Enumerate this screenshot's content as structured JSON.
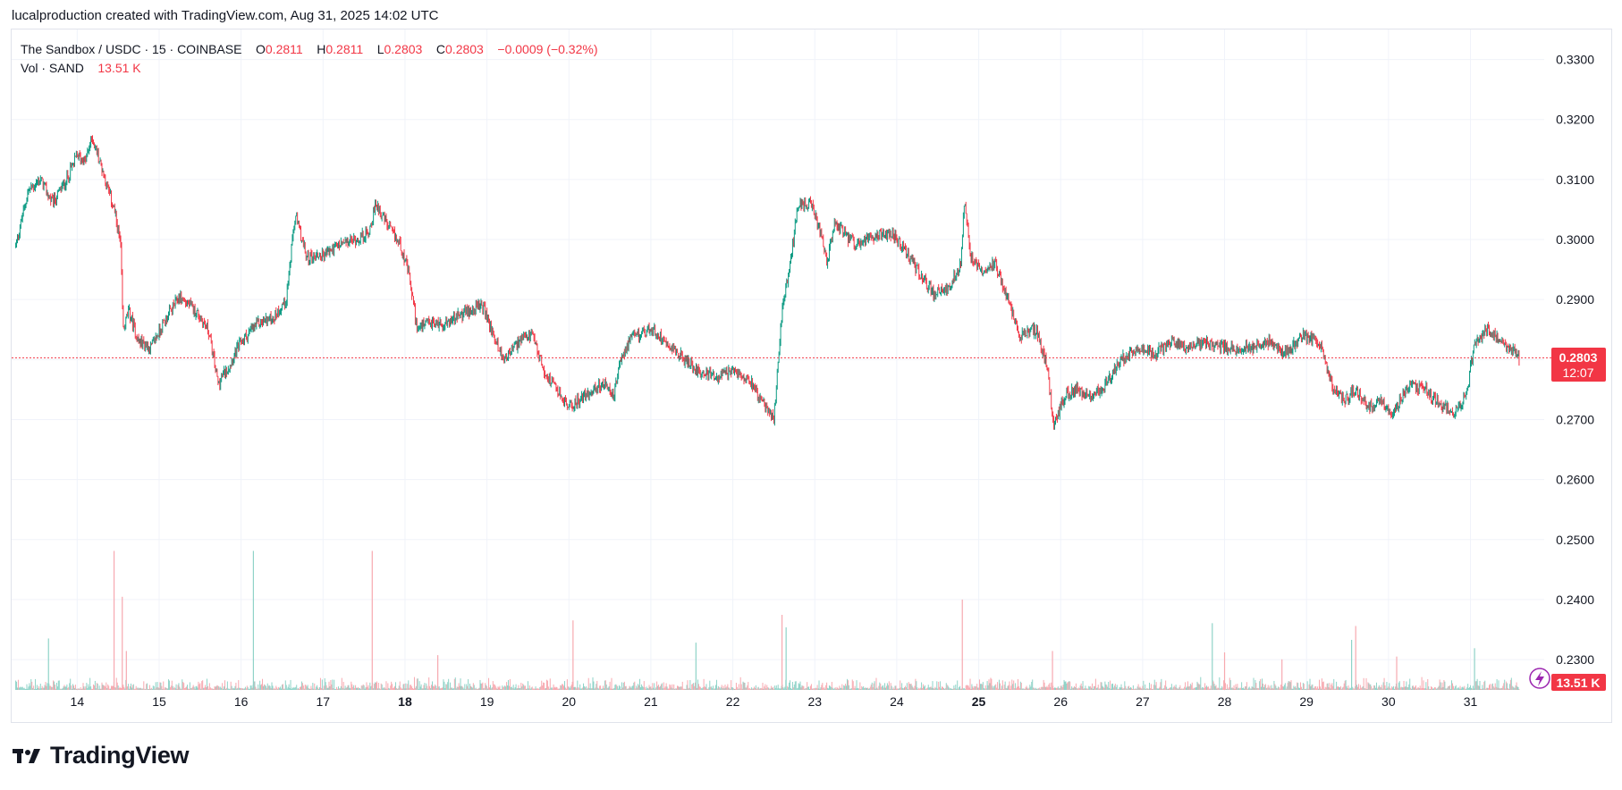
{
  "header": {
    "note": "lucalproduction created with TradingView.com, Aug 31, 2025 14:02 UTC"
  },
  "legend": {
    "symbol": "The Sandbox / USDC · 15 · COINBASE",
    "o_label": "O",
    "o_value": "0.2811",
    "h_label": "H",
    "h_value": "0.2811",
    "l_label": "L",
    "l_value": "0.2803",
    "c_label": "C",
    "c_value": "0.2803",
    "change": "−0.0009 (−0.32%)",
    "vol_label": "Vol · SAND",
    "vol_value": "13.51 K"
  },
  "price_badge": {
    "price": "0.2803",
    "countdown": "12:07"
  },
  "volume_badge": {
    "value": "13.51 K"
  },
  "branding": {
    "logo_text": "TradingView"
  },
  "colors": {
    "up": "#089981",
    "down": "#f23645",
    "vol_up": "#8fd3c8",
    "vol_down": "#f7a9b0",
    "grid": "#f0f3fa"
  },
  "chart_data": {
    "type": "candlestick",
    "title": "The Sandbox / USDC · 15 · COINBASE",
    "x_tick_labels": [
      "14",
      "15",
      "16",
      "17",
      "18",
      "19",
      "20",
      "21",
      "22",
      "23",
      "24",
      "25",
      "26",
      "27",
      "28",
      "29",
      "30",
      "31"
    ],
    "bold_ticks": [
      "18",
      "25"
    ],
    "y_tick_labels": [
      "0.3300",
      "0.3200",
      "0.3100",
      "0.3000",
      "0.2900",
      "0.2800",
      "0.2700",
      "0.2600",
      "0.2500",
      "0.2400",
      "0.2300"
    ],
    "ylim": [
      0.2248,
      0.335
    ],
    "xlim_days": [
      13.2,
      31.9
    ],
    "last_price": 0.2803,
    "price_path": [
      [
        13.25,
        0.299
      ],
      [
        13.4,
        0.308
      ],
      [
        13.55,
        0.31
      ],
      [
        13.7,
        0.306
      ],
      [
        13.85,
        0.3095
      ],
      [
        14.0,
        0.314
      ],
      [
        14.1,
        0.313
      ],
      [
        14.18,
        0.317
      ],
      [
        14.3,
        0.312
      ],
      [
        14.45,
        0.305
      ],
      [
        14.53,
        0.299
      ],
      [
        14.56,
        0.285
      ],
      [
        14.63,
        0.288
      ],
      [
        14.75,
        0.283
      ],
      [
        14.9,
        0.282
      ],
      [
        15.05,
        0.286
      ],
      [
        15.25,
        0.2905
      ],
      [
        15.45,
        0.288
      ],
      [
        15.6,
        0.285
      ],
      [
        15.72,
        0.276
      ],
      [
        15.85,
        0.279
      ],
      [
        16.0,
        0.283
      ],
      [
        16.2,
        0.286
      ],
      [
        16.4,
        0.287
      ],
      [
        16.55,
        0.29
      ],
      [
        16.66,
        0.304
      ],
      [
        16.8,
        0.297
      ],
      [
        17.0,
        0.2975
      ],
      [
        17.2,
        0.299
      ],
      [
        17.4,
        0.3
      ],
      [
        17.55,
        0.301
      ],
      [
        17.65,
        0.306
      ],
      [
        17.8,
        0.302
      ],
      [
        17.95,
        0.299
      ],
      [
        18.05,
        0.294
      ],
      [
        18.15,
        0.285
      ],
      [
        18.3,
        0.286
      ],
      [
        18.5,
        0.286
      ],
      [
        18.75,
        0.288
      ],
      [
        18.95,
        0.289
      ],
      [
        19.05,
        0.285
      ],
      [
        19.2,
        0.28
      ],
      [
        19.4,
        0.283
      ],
      [
        19.55,
        0.284
      ],
      [
        19.7,
        0.278
      ],
      [
        19.85,
        0.275
      ],
      [
        20.0,
        0.272
      ],
      [
        20.2,
        0.274
      ],
      [
        20.4,
        0.276
      ],
      [
        20.55,
        0.274
      ],
      [
        20.65,
        0.281
      ],
      [
        20.8,
        0.284
      ],
      [
        21.0,
        0.285
      ],
      [
        21.2,
        0.283
      ],
      [
        21.4,
        0.28
      ],
      [
        21.6,
        0.278
      ],
      [
        21.8,
        0.277
      ],
      [
        22.0,
        0.278
      ],
      [
        22.2,
        0.277
      ],
      [
        22.35,
        0.273
      ],
      [
        22.5,
        0.27
      ],
      [
        22.6,
        0.288
      ],
      [
        22.7,
        0.296
      ],
      [
        22.8,
        0.306
      ],
      [
        22.95,
        0.306
      ],
      [
        23.05,
        0.302
      ],
      [
        23.15,
        0.296
      ],
      [
        23.25,
        0.303
      ],
      [
        23.4,
        0.3
      ],
      [
        23.55,
        0.299
      ],
      [
        23.75,
        0.301
      ],
      [
        23.95,
        0.301
      ],
      [
        24.1,
        0.298
      ],
      [
        24.25,
        0.295
      ],
      [
        24.45,
        0.291
      ],
      [
        24.65,
        0.292
      ],
      [
        24.78,
        0.296
      ],
      [
        24.83,
        0.307
      ],
      [
        24.9,
        0.297
      ],
      [
        25.05,
        0.295
      ],
      [
        25.2,
        0.296
      ],
      [
        25.35,
        0.29
      ],
      [
        25.5,
        0.284
      ],
      [
        25.7,
        0.285
      ],
      [
        25.83,
        0.279
      ],
      [
        25.92,
        0.269
      ],
      [
        26.05,
        0.274
      ],
      [
        26.2,
        0.275
      ],
      [
        26.4,
        0.274
      ],
      [
        26.55,
        0.276
      ],
      [
        26.75,
        0.28
      ],
      [
        26.95,
        0.282
      ],
      [
        27.15,
        0.281
      ],
      [
        27.35,
        0.283
      ],
      [
        27.55,
        0.282
      ],
      [
        27.75,
        0.283
      ],
      [
        27.95,
        0.282
      ],
      [
        28.15,
        0.282
      ],
      [
        28.35,
        0.282
      ],
      [
        28.55,
        0.283
      ],
      [
        28.75,
        0.281
      ],
      [
        28.95,
        0.284
      ],
      [
        29.15,
        0.283
      ],
      [
        29.3,
        0.276
      ],
      [
        29.45,
        0.273
      ],
      [
        29.6,
        0.275
      ],
      [
        29.75,
        0.272
      ],
      [
        29.9,
        0.273
      ],
      [
        30.05,
        0.271
      ],
      [
        30.25,
        0.276
      ],
      [
        30.45,
        0.275
      ],
      [
        30.6,
        0.273
      ],
      [
        30.8,
        0.271
      ],
      [
        30.95,
        0.274
      ],
      [
        31.05,
        0.283
      ],
      [
        31.2,
        0.285
      ],
      [
        31.4,
        0.283
      ],
      [
        31.6,
        0.2803
      ]
    ],
    "volume_spikes": [
      [
        14.45,
        1.0,
        "down"
      ],
      [
        14.55,
        0.67,
        "down"
      ],
      [
        14.6,
        0.28,
        "down"
      ],
      [
        13.65,
        0.37,
        "up"
      ],
      [
        16.15,
        1.0,
        "up"
      ],
      [
        17.6,
        1.0,
        "down"
      ],
      [
        18.4,
        0.25,
        "down"
      ],
      [
        20.05,
        0.5,
        "down"
      ],
      [
        21.55,
        0.34,
        "up"
      ],
      [
        22.6,
        0.54,
        "down"
      ],
      [
        22.65,
        0.45,
        "up"
      ],
      [
        24.8,
        0.65,
        "down"
      ],
      [
        25.9,
        0.28,
        "down"
      ],
      [
        27.85,
        0.48,
        "up"
      ],
      [
        28.0,
        0.27,
        "down"
      ],
      [
        28.7,
        0.22,
        "down"
      ],
      [
        29.55,
        0.36,
        "up"
      ],
      [
        29.6,
        0.46,
        "down"
      ],
      [
        30.1,
        0.24,
        "down"
      ],
      [
        31.05,
        0.3,
        "up"
      ]
    ],
    "grid": true,
    "legend_position": "top-left"
  }
}
